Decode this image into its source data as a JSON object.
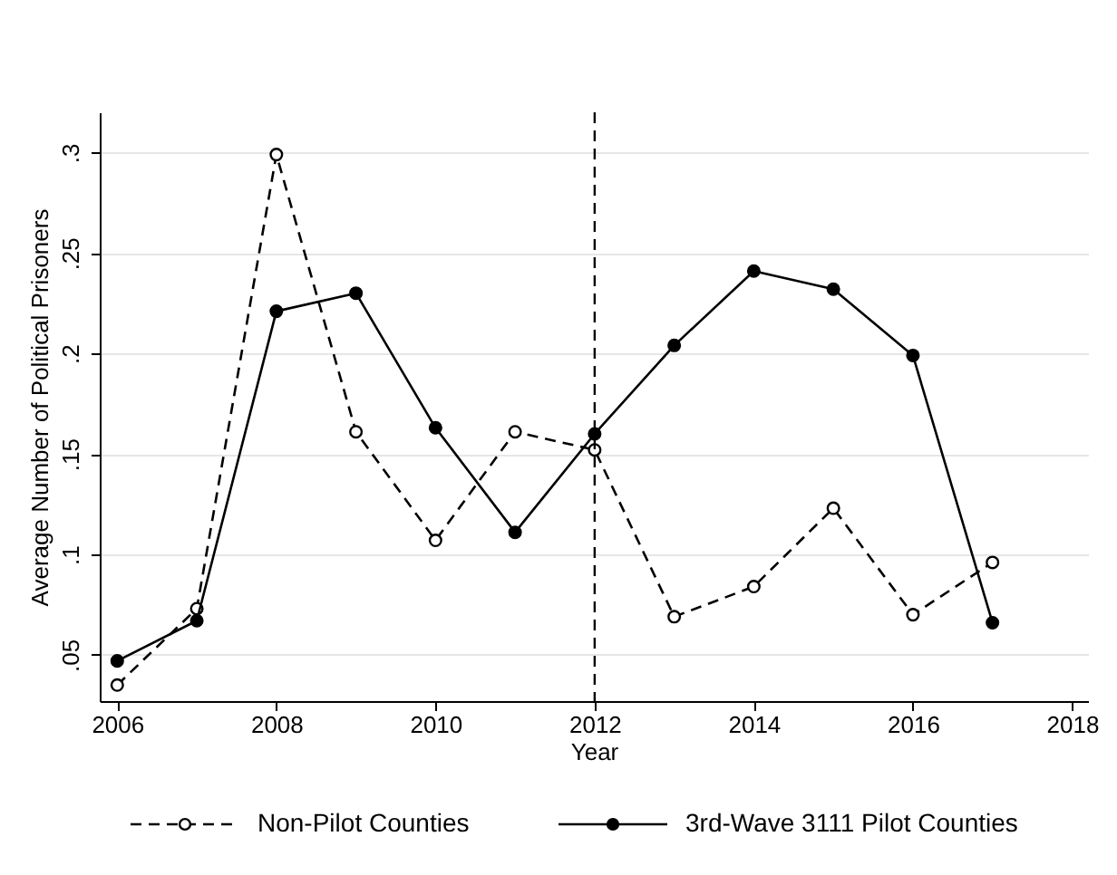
{
  "chart_data": {
    "type": "line",
    "xlabel": "Year",
    "ylabel": "Average Number of Political Prisoners",
    "x": [
      2006,
      2007,
      2008,
      2009,
      2010,
      2011,
      2012,
      2013,
      2014,
      2015,
      2016,
      2017
    ],
    "series": [
      {
        "name": "Non-Pilot Counties",
        "color": "#000000",
        "line_style": "dashed",
        "marker": "circle",
        "values": [
          0.035,
          0.073,
          0.299,
          0.161,
          0.107,
          0.161,
          0.152,
          0.069,
          0.084,
          0.123,
          0.07,
          0.096
        ]
      },
      {
        "name": "3rd-Wave 3111 Pilot Counties",
        "color": "#000000",
        "line_style": "solid",
        "marker": "circle",
        "values": [
          0.047,
          0.067,
          0.221,
          0.23,
          0.163,
          0.111,
          0.16,
          0.204,
          0.241,
          0.232,
          0.199,
          0.066
        ]
      }
    ],
    "xlim": [
      2005.78,
      2018.2
    ],
    "xticks": [
      2006,
      2008,
      2010,
      2012,
      2014,
      2016,
      2018
    ],
    "ylim": [
      0.027,
      0.32
    ],
    "yticks": [
      {
        "value": 0.05,
        "label": ".05"
      },
      {
        "value": 0.1,
        "label": ".1"
      },
      {
        "value": 0.15,
        "label": ".15"
      },
      {
        "value": 0.2,
        "label": ".2"
      },
      {
        "value": 0.25,
        "label": ".25"
      },
      {
        "value": 0.3,
        "label": ".3"
      }
    ],
    "ref_lines": [
      {
        "axis": "x",
        "value": 2012,
        "line_style": "dashed",
        "color": "#000000"
      }
    ],
    "grid": "y",
    "legend": "bottom"
  }
}
